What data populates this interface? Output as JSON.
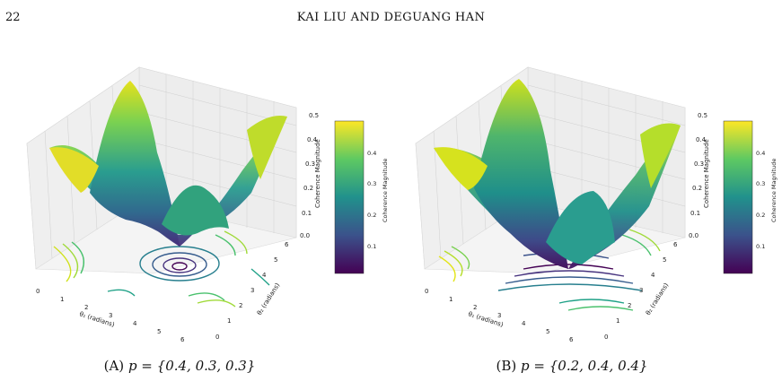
{
  "header": {
    "page_number": "22",
    "running_head": "KAI LIU AND DEGUANG HAN"
  },
  "figures": [
    {
      "caption_label": "(A)",
      "caption_text": "p = {0.4, 0.3, 0.3}",
      "xlabel": "θ₁ (radians)",
      "ylabel": "θ₂ (radians)",
      "zlabel": "Coherence Magnitude",
      "colorbar_label": "Coherence Magnitude",
      "x_ticks": [
        "0",
        "1",
        "2",
        "3",
        "4",
        "5",
        "6"
      ],
      "y_ticks": [
        "0",
        "1",
        "2",
        "3",
        "4",
        "5",
        "6"
      ],
      "z_ticks": [
        "0.0",
        "0.1",
        "0.2",
        "0.3",
        "0.4",
        "0.5"
      ],
      "colorbar_ticks": [
        "0.1",
        "0.2",
        "0.3",
        "0.4"
      ]
    },
    {
      "caption_label": "(B)",
      "caption_text": "p = {0.2, 0.4, 0.4}",
      "xlabel": "θ₁ (radians)",
      "ylabel": "θ₂ (radians)",
      "zlabel": "Coherence Magnitude",
      "colorbar_label": "Coherence Magnitude",
      "x_ticks": [
        "0",
        "1",
        "2",
        "3",
        "4",
        "5",
        "6"
      ],
      "y_ticks": [
        "0",
        "1",
        "2",
        "3",
        "4",
        "5",
        "6"
      ],
      "z_ticks": [
        "0.0",
        "0.1",
        "0.2",
        "0.3",
        "0.4",
        "0.5"
      ],
      "colorbar_ticks": [
        "0.1",
        "0.2",
        "0.3",
        "0.4"
      ]
    }
  ],
  "colors": {
    "viridis_dark": "#440154",
    "viridis_mid": "#21918c",
    "viridis_light": "#fde725"
  }
}
